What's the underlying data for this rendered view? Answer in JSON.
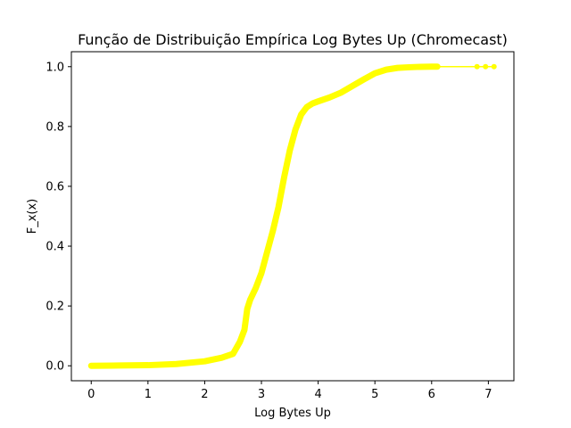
{
  "chart_data": {
    "type": "line",
    "title": "Função de Distribuição Empírica Log Bytes Up (Chromecast)",
    "xlabel": "Log Bytes Up",
    "ylabel": "F_x(x)",
    "xlim": [
      -0.35,
      7.45
    ],
    "ylim": [
      -0.05,
      1.05
    ],
    "xticks": [
      0,
      1,
      2,
      3,
      4,
      5,
      6,
      7
    ],
    "yticks": [
      0.0,
      0.2,
      0.4,
      0.6,
      0.8,
      1.0
    ],
    "ytick_labels": [
      "0.0",
      "0.2",
      "0.4",
      "0.6",
      "0.8",
      "1.0"
    ],
    "grid": false,
    "legend": "none",
    "series": [
      {
        "color": "#ffff00",
        "marker": "circle",
        "x": [
          0.0,
          0.5,
          1.0,
          1.5,
          2.0,
          2.3,
          2.5,
          2.62,
          2.7,
          2.75,
          2.8,
          2.9,
          3.0,
          3.1,
          3.2,
          3.3,
          3.4,
          3.5,
          3.6,
          3.7,
          3.8,
          3.9,
          4.0,
          4.2,
          4.4,
          4.6,
          4.8,
          5.0,
          5.2,
          5.4,
          5.6,
          5.8,
          6.0,
          6.1,
          6.8,
          6.95,
          7.1
        ],
        "y": [
          0.0,
          0.001,
          0.002,
          0.006,
          0.015,
          0.027,
          0.04,
          0.08,
          0.12,
          0.19,
          0.22,
          0.26,
          0.31,
          0.38,
          0.45,
          0.53,
          0.63,
          0.72,
          0.79,
          0.84,
          0.865,
          0.877,
          0.884,
          0.897,
          0.913,
          0.935,
          0.957,
          0.978,
          0.99,
          0.996,
          0.998,
          0.9995,
          1.0,
          1.0,
          1.0,
          1.0,
          1.0
        ]
      }
    ]
  }
}
